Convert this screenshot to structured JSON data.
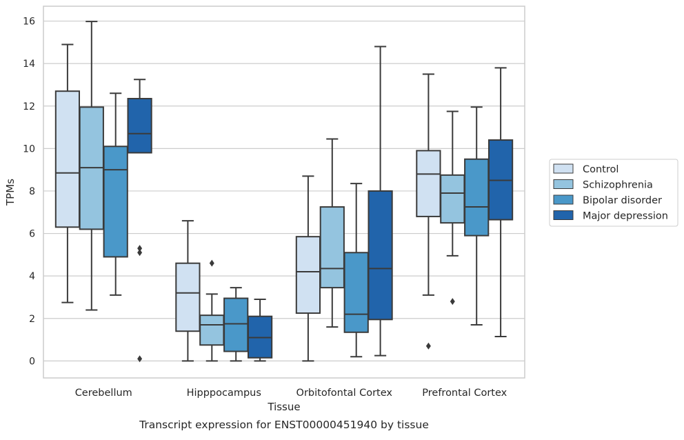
{
  "chart_data": {
    "type": "box",
    "caption": "Transcript expression for ENST00000451940 by tissue",
    "xlabel": "Tissue",
    "ylabel": "TPMs",
    "ylim": [
      -0.8,
      16.7
    ],
    "yticks": [
      0,
      2,
      4,
      6,
      8,
      10,
      12,
      14,
      16
    ],
    "grid": "horizontal",
    "legend_position": "right",
    "categories": [
      "Cerebellum",
      "Hipppocampus",
      "Orbitofontal Cortex",
      "Prefrontal Cortex"
    ],
    "series": [
      {
        "name": "Control",
        "color": "#d0e1f2",
        "boxes": [
          {
            "whislo": 2.75,
            "q1": 6.3,
            "med": 8.85,
            "q3": 12.7,
            "whishi": 14.9,
            "fliers": []
          },
          {
            "whislo": 0.0,
            "q1": 1.4,
            "med": 3.2,
            "q3": 4.6,
            "whishi": 6.6,
            "fliers": []
          },
          {
            "whislo": 0.0,
            "q1": 2.25,
            "med": 4.2,
            "q3": 5.85,
            "whishi": 8.7,
            "fliers": []
          },
          {
            "whislo": 3.1,
            "q1": 6.8,
            "med": 8.8,
            "q3": 9.9,
            "whishi": 13.5,
            "fliers": [
              0.7
            ]
          }
        ]
      },
      {
        "name": "Schizophrenia",
        "color": "#94c4df",
        "boxes": [
          {
            "whislo": 2.4,
            "q1": 6.2,
            "med": 9.1,
            "q3": 11.95,
            "whishi": 15.98,
            "fliers": []
          },
          {
            "whislo": 0.0,
            "q1": 0.75,
            "med": 1.7,
            "q3": 2.15,
            "whishi": 3.15,
            "fliers": [
              4.6
            ]
          },
          {
            "whislo": 1.6,
            "q1": 3.45,
            "med": 4.35,
            "q3": 7.25,
            "whishi": 10.45,
            "fliers": []
          },
          {
            "whislo": 4.95,
            "q1": 6.5,
            "med": 7.9,
            "q3": 8.75,
            "whishi": 11.75,
            "fliers": [
              2.8
            ]
          }
        ]
      },
      {
        "name": "Bipolar disorder",
        "color": "#4a98c9",
        "boxes": [
          {
            "whislo": 3.1,
            "q1": 4.9,
            "med": 9.0,
            "q3": 10.1,
            "whishi": 12.6,
            "fliers": []
          },
          {
            "whislo": 0.0,
            "q1": 0.45,
            "med": 1.75,
            "q3": 2.95,
            "whishi": 3.45,
            "fliers": []
          },
          {
            "whislo": 0.2,
            "q1": 1.35,
            "med": 2.2,
            "q3": 5.1,
            "whishi": 8.35,
            "fliers": []
          },
          {
            "whislo": 1.7,
            "q1": 5.9,
            "med": 7.25,
            "q3": 9.5,
            "whishi": 11.95,
            "fliers": []
          }
        ]
      },
      {
        "name": "Major depression",
        "color": "#2164ab",
        "boxes": [
          {
            "whislo": 9.8,
            "q1": 9.8,
            "med": 10.7,
            "q3": 12.35,
            "whishi": 13.25,
            "fliers": [
              5.3,
              5.1,
              0.1
            ]
          },
          {
            "whislo": 0.0,
            "q1": 0.15,
            "med": 1.1,
            "q3": 2.1,
            "whishi": 2.9,
            "fliers": []
          },
          {
            "whislo": 0.25,
            "q1": 1.95,
            "med": 4.35,
            "q3": 8.0,
            "whishi": 14.8,
            "fliers": []
          },
          {
            "whislo": 1.15,
            "q1": 6.65,
            "med": 8.5,
            "q3": 10.4,
            "whishi": 13.8,
            "fliers": []
          }
        ]
      }
    ]
  }
}
